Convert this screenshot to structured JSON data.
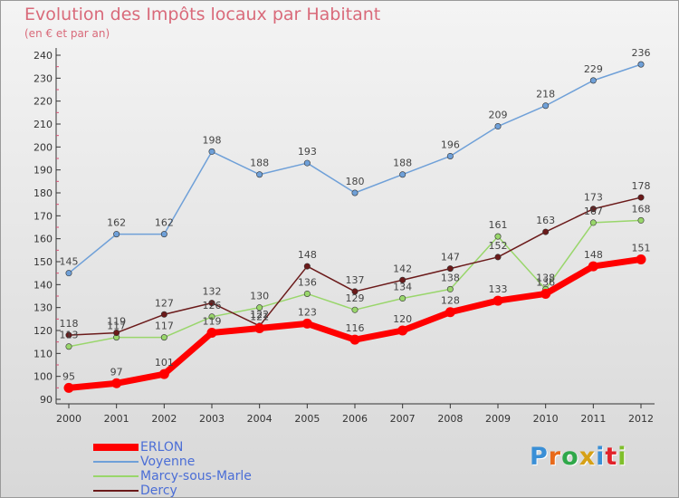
{
  "header": {
    "title": "Evolution des Impôts locaux par Habitant",
    "subtitle": "(en € et par an)"
  },
  "logo": {
    "text": "Proxiti",
    "letter_colors": [
      "#3a8fd6",
      "#e86a1a",
      "#2fa84a",
      "#d6a016",
      "#3a8fd6",
      "#e2222a",
      "#7fbf2a"
    ]
  },
  "chart_data": {
    "type": "line",
    "title": "Evolution des Impôts locaux par Habitant",
    "subtitle": "(en € et par an)",
    "xlabel": "",
    "ylabel": "",
    "x": [
      2000,
      2001,
      2002,
      2003,
      2004,
      2005,
      2006,
      2007,
      2008,
      2009,
      2010,
      2011,
      2012
    ],
    "ylim": [
      90,
      240
    ],
    "yticks": [
      90,
      100,
      110,
      120,
      130,
      140,
      150,
      160,
      170,
      180,
      190,
      200,
      210,
      220,
      230,
      240
    ],
    "grid": false,
    "legend_position": "bottom-left",
    "series": [
      {
        "name": "ERLON",
        "color": "#ff0000",
        "values": [
          95,
          97,
          101,
          119,
          121,
          123,
          116,
          120,
          128,
          133,
          136,
          148,
          151
        ]
      },
      {
        "name": "Voyenne",
        "color": "#6fa0d8",
        "values": [
          145,
          162,
          162,
          198,
          188,
          193,
          180,
          188,
          196,
          209,
          218,
          229,
          236
        ]
      },
      {
        "name": "Marcy-sous-Marle",
        "color": "#99d66b",
        "values": [
          113,
          117,
          117,
          126,
          130,
          136,
          129,
          134,
          138,
          161,
          138,
          167,
          168
        ]
      },
      {
        "name": "Dercy",
        "color": "#6b1a1a",
        "values": [
          118,
          119,
          127,
          132,
          122,
          148,
          137,
          142,
          147,
          152,
          163,
          173,
          178
        ]
      }
    ]
  }
}
